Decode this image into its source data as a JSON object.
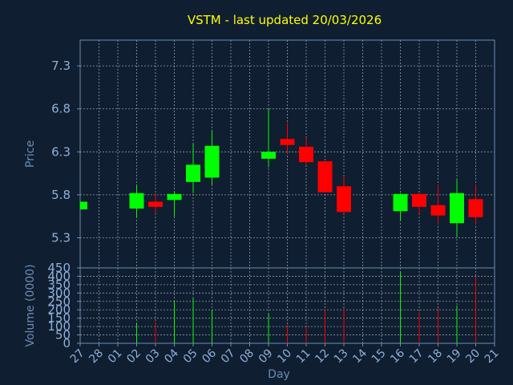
{
  "colors": {
    "background": "#0f1e30",
    "axis": "#6b8db5",
    "tick_label": "#8fb0d8",
    "grid": "#c8d4e0",
    "title": "#ffff00",
    "up": "#00ff00",
    "down": "#ff0000"
  },
  "chart_data": {
    "type": "candlestick",
    "title": "VSTM - last updated 20/03/2026",
    "xlabel": "Day",
    "grid": true,
    "x_ticks": [
      "27",
      "28",
      "01",
      "02",
      "03",
      "04",
      "05",
      "06",
      "07",
      "08",
      "09",
      "10",
      "11",
      "12",
      "13",
      "14",
      "15",
      "16",
      "17",
      "18",
      "19",
      "20",
      "21"
    ],
    "price_panel": {
      "ylabel": "Price",
      "ylim": [
        4.95,
        7.6
      ],
      "y_ticks": [
        "5.3",
        "5.8",
        "6.3",
        "6.8",
        "7.3"
      ],
      "y_tick_values": [
        5.3,
        5.8,
        6.3,
        6.8,
        7.3
      ]
    },
    "volume_panel": {
      "ylabel": "Volume (0000)",
      "ylim": [
        0,
        450
      ],
      "y_ticks": [
        "0",
        "50",
        "100",
        "150",
        "200",
        "250",
        "300",
        "350",
        "400",
        "450"
      ],
      "y_tick_values": [
        0,
        50,
        100,
        150,
        200,
        250,
        300,
        350,
        400,
        450
      ]
    },
    "candles": [
      {
        "day": "27",
        "open": 5.63,
        "close": 5.72,
        "high": 5.72,
        "low": 5.63,
        "volume": 0
      },
      {
        "day": "02",
        "open": 5.64,
        "close": 5.82,
        "high": 5.92,
        "low": 5.54,
        "volume": 120
      },
      {
        "day": "03",
        "open": 5.72,
        "close": 5.66,
        "high": 5.82,
        "low": 5.58,
        "volume": 130
      },
      {
        "day": "04",
        "open": 5.74,
        "close": 5.81,
        "high": 5.84,
        "low": 5.55,
        "volume": 250
      },
      {
        "day": "05",
        "open": 5.95,
        "close": 6.15,
        "high": 6.4,
        "low": 5.82,
        "volume": 270
      },
      {
        "day": "06",
        "open": 6.0,
        "close": 6.37,
        "high": 6.55,
        "low": 5.92,
        "volume": 200
      },
      {
        "day": "09",
        "open": 6.22,
        "close": 6.3,
        "high": 6.8,
        "low": 6.12,
        "volume": 180
      },
      {
        "day": "10",
        "open": 6.45,
        "close": 6.38,
        "high": 6.64,
        "low": 6.28,
        "volume": 110
      },
      {
        "day": "11",
        "open": 6.36,
        "close": 6.18,
        "high": 6.47,
        "low": 6.15,
        "volume": 100
      },
      {
        "day": "12",
        "open": 6.19,
        "close": 5.83,
        "high": 6.19,
        "low": 5.83,
        "volume": 200
      },
      {
        "day": "13",
        "open": 5.9,
        "close": 5.6,
        "high": 6.02,
        "low": 5.58,
        "volume": 210
      },
      {
        "day": "16",
        "open": 5.61,
        "close": 5.81,
        "high": 5.82,
        "low": 5.5,
        "volume": 430
      },
      {
        "day": "17",
        "open": 5.81,
        "close": 5.66,
        "high": 5.82,
        "low": 5.58,
        "volume": 185
      },
      {
        "day": "18",
        "open": 5.68,
        "close": 5.56,
        "high": 5.92,
        "low": 5.45,
        "volume": 210
      },
      {
        "day": "19",
        "open": 5.47,
        "close": 5.82,
        "high": 5.98,
        "low": 5.32,
        "volume": 225
      },
      {
        "day": "20",
        "open": 5.75,
        "close": 5.54,
        "high": 5.92,
        "low": 5.45,
        "volume": 400
      }
    ]
  }
}
